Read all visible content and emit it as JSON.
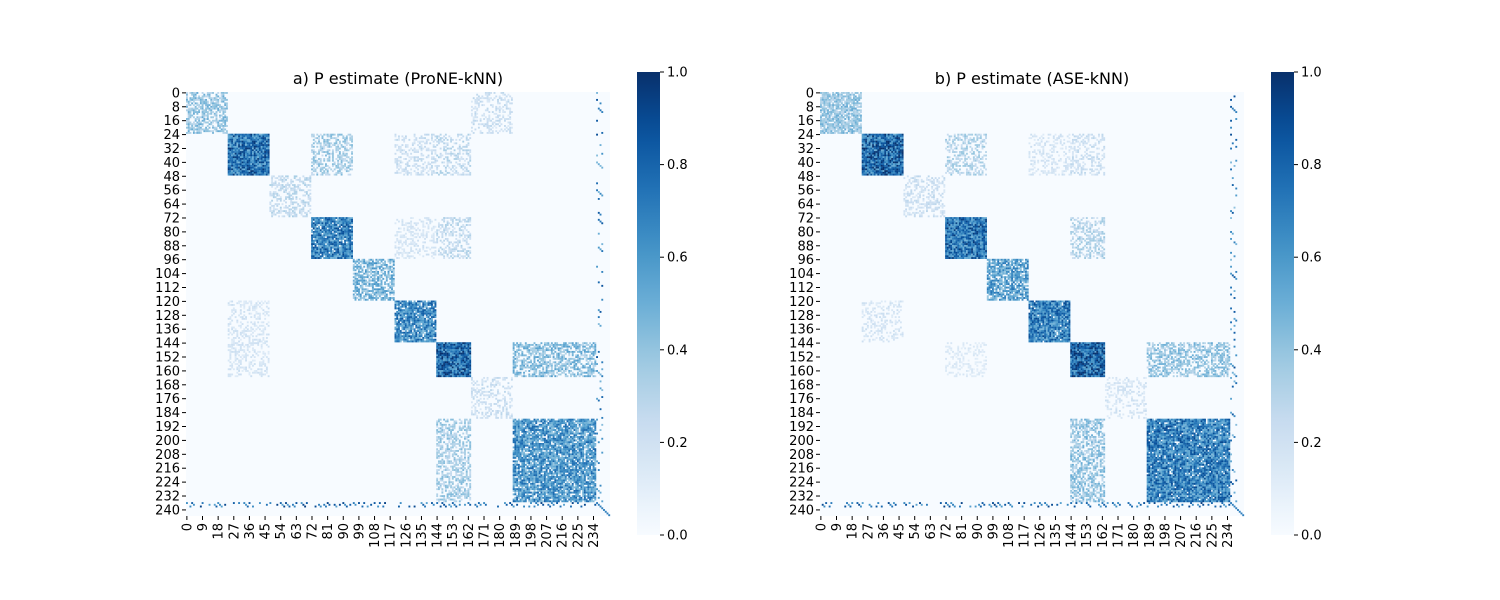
{
  "chart_data": [
    {
      "type": "heatmap",
      "title": "a) P estimate (ProNE-kNN)",
      "n": 244,
      "x_ticks": [
        0,
        9,
        18,
        27,
        36,
        45,
        54,
        63,
        72,
        81,
        90,
        99,
        108,
        117,
        126,
        135,
        144,
        153,
        162,
        171,
        180,
        189,
        198,
        207,
        216,
        225,
        234
      ],
      "y_ticks": [
        0,
        8,
        16,
        24,
        32,
        40,
        48,
        56,
        64,
        72,
        80,
        88,
        96,
        104,
        112,
        120,
        128,
        136,
        144,
        152,
        160,
        168,
        176,
        184,
        192,
        200,
        208,
        216,
        224,
        232,
        240
      ],
      "colorbar": {
        "min": 0.0,
        "max": 1.0,
        "ticks": [
          "0.0",
          "0.2",
          "0.4",
          "0.6",
          "0.8",
          "1.0"
        ],
        "colormap": "Blues"
      },
      "blocks": [
        {
          "start": 0,
          "end": 24,
          "value": 0.45
        },
        {
          "start": 24,
          "end": 48,
          "value": 0.85
        },
        {
          "start": 48,
          "end": 72,
          "value": 0.3
        },
        {
          "start": 72,
          "end": 96,
          "value": 0.8
        },
        {
          "start": 96,
          "end": 120,
          "value": 0.55
        },
        {
          "start": 120,
          "end": 144,
          "value": 0.75
        },
        {
          "start": 144,
          "end": 164,
          "value": 0.9
        },
        {
          "start": 164,
          "end": 188,
          "value": 0.25
        },
        {
          "start": 188,
          "end": 236,
          "value": 0.7
        }
      ],
      "off_diagonal": [
        {
          "rows": [
            24,
            48
          ],
          "cols": [
            72,
            96
          ],
          "value": 0.4
        },
        {
          "rows": [
            24,
            48
          ],
          "cols": [
            120,
            144
          ],
          "value": 0.25
        },
        {
          "rows": [
            24,
            48
          ],
          "cols": [
            144,
            164
          ],
          "value": 0.3
        },
        {
          "rows": [
            72,
            96
          ],
          "cols": [
            120,
            144
          ],
          "value": 0.2
        },
        {
          "rows": [
            72,
            96
          ],
          "cols": [
            144,
            164
          ],
          "value": 0.3
        },
        {
          "rows": [
            0,
            24
          ],
          "cols": [
            164,
            188
          ],
          "value": 0.25
        },
        {
          "rows": [
            144,
            164
          ],
          "cols": [
            188,
            236
          ],
          "value": 0.5
        },
        {
          "rows": [
            120,
            144
          ],
          "cols": [
            24,
            48
          ],
          "value": 0.2
        },
        {
          "rows": [
            144,
            164
          ],
          "cols": [
            24,
            48
          ],
          "value": 0.2
        },
        {
          "rows": [
            188,
            236
          ],
          "cols": [
            144,
            164
          ],
          "value": 0.4
        }
      ]
    },
    {
      "type": "heatmap",
      "title": "b) P estimate (ASE-kNN)",
      "n": 244,
      "x_ticks": [
        0,
        9,
        18,
        27,
        36,
        45,
        54,
        63,
        72,
        81,
        90,
        99,
        108,
        117,
        126,
        135,
        144,
        153,
        162,
        171,
        180,
        189,
        198,
        207,
        216,
        225,
        234
      ],
      "y_ticks": [
        0,
        8,
        16,
        24,
        32,
        40,
        48,
        56,
        64,
        72,
        80,
        88,
        96,
        104,
        112,
        120,
        128,
        136,
        144,
        152,
        160,
        168,
        176,
        184,
        192,
        200,
        208,
        216,
        224,
        232,
        240
      ],
      "colorbar": {
        "min": 0.0,
        "max": 1.0,
        "ticks": [
          "0.0",
          "0.2",
          "0.4",
          "0.6",
          "0.8",
          "1.0"
        ],
        "colormap": "Blues"
      },
      "blocks": [
        {
          "start": 0,
          "end": 24,
          "value": 0.45
        },
        {
          "start": 24,
          "end": 48,
          "value": 0.9
        },
        {
          "start": 48,
          "end": 72,
          "value": 0.25
        },
        {
          "start": 72,
          "end": 96,
          "value": 0.85
        },
        {
          "start": 96,
          "end": 120,
          "value": 0.65
        },
        {
          "start": 120,
          "end": 144,
          "value": 0.8
        },
        {
          "start": 144,
          "end": 164,
          "value": 0.92
        },
        {
          "start": 164,
          "end": 188,
          "value": 0.2
        },
        {
          "start": 188,
          "end": 236,
          "value": 0.8
        }
      ],
      "off_diagonal": [
        {
          "rows": [
            24,
            48
          ],
          "cols": [
            72,
            96
          ],
          "value": 0.35
        },
        {
          "rows": [
            24,
            48
          ],
          "cols": [
            120,
            144
          ],
          "value": 0.2
        },
        {
          "rows": [
            24,
            48
          ],
          "cols": [
            144,
            164
          ],
          "value": 0.25
        },
        {
          "rows": [
            72,
            96
          ],
          "cols": [
            144,
            164
          ],
          "value": 0.35
        },
        {
          "rows": [
            0,
            24
          ],
          "cols": [
            0,
            24
          ],
          "value": 0.45
        },
        {
          "rows": [
            144,
            164
          ],
          "cols": [
            188,
            236
          ],
          "value": 0.45
        },
        {
          "rows": [
            188,
            236
          ],
          "cols": [
            144,
            164
          ],
          "value": 0.45
        },
        {
          "rows": [
            120,
            144
          ],
          "cols": [
            24,
            48
          ],
          "value": 0.2
        },
        {
          "rows": [
            144,
            164
          ],
          "cols": [
            72,
            96
          ],
          "value": 0.15
        }
      ]
    }
  ]
}
